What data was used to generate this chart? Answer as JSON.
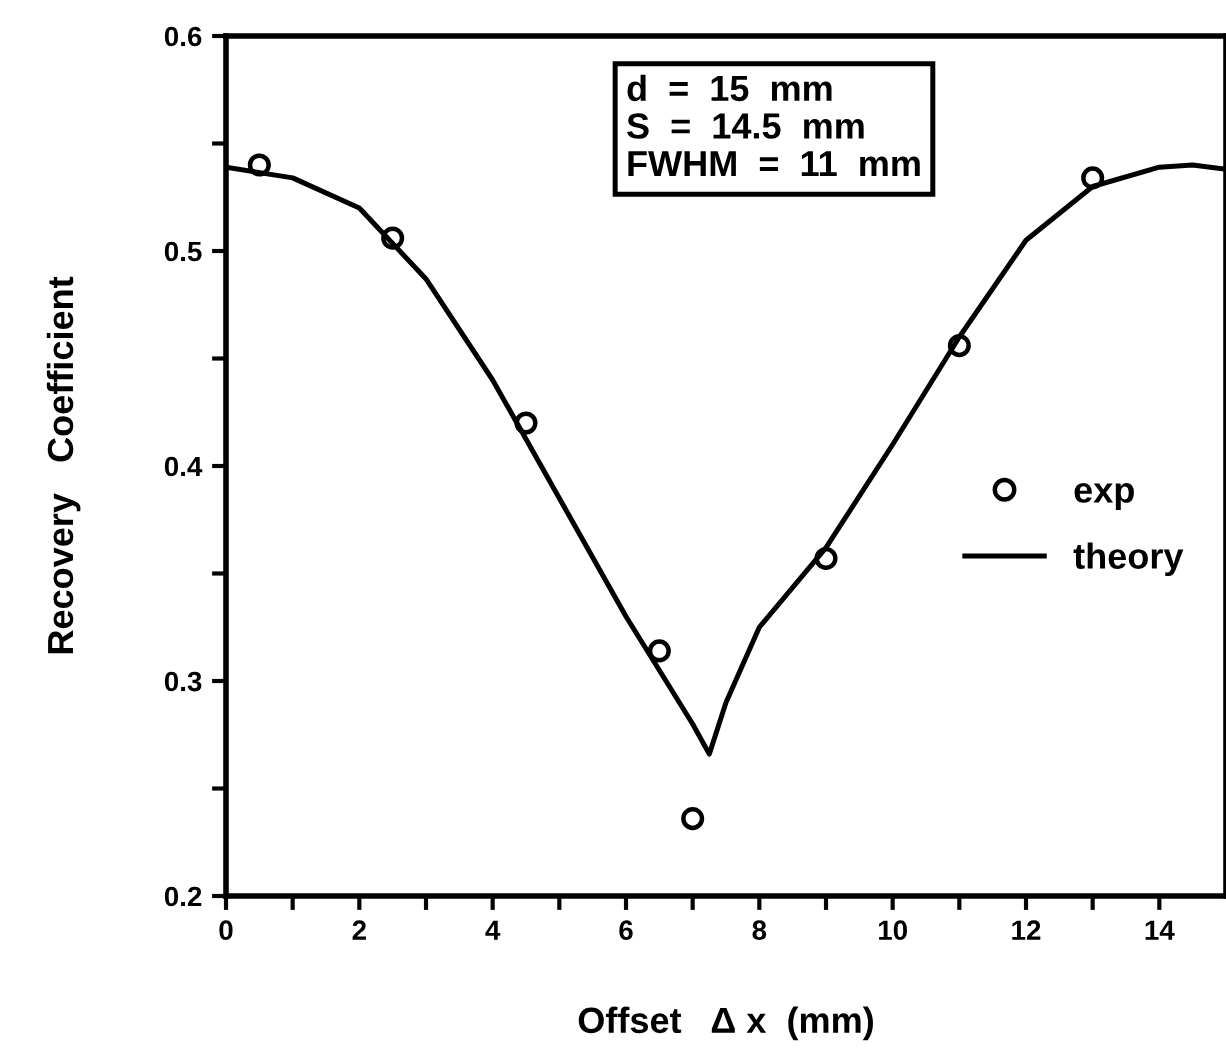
{
  "chart_data": {
    "type": "line",
    "xlabel": "Offset   Δ x  (mm)",
    "ylabel": "Recovery   Coefficient",
    "series": [
      {
        "name": "exp",
        "type": "scatter",
        "color": "#000000",
        "marker": "circle",
        "x": [
          0.5,
          2.5,
          4.5,
          6.5,
          7.0,
          9.0,
          11.0,
          13.0
        ],
        "values": [
          0.54,
          0.506,
          0.42,
          0.314,
          0.236,
          0.357,
          0.456,
          0.534
        ]
      },
      {
        "name": "theory",
        "color": "#000000",
        "line_style": "solid",
        "x": [
          0,
          1,
          2,
          3,
          4,
          5,
          6,
          6.5,
          7,
          7.25,
          7.5,
          8,
          9,
          10,
          11,
          12,
          13,
          14,
          14.5,
          15
        ],
        "values": [
          0.539,
          0.534,
          0.52,
          0.487,
          0.44,
          0.385,
          0.33,
          0.305,
          0.28,
          0.266,
          0.29,
          0.325,
          0.362,
          0.41,
          0.46,
          0.505,
          0.53,
          0.539,
          0.54,
          0.538
        ]
      }
    ],
    "xlim": [
      0,
      15
    ],
    "ylim": [
      0.2,
      0.6
    ],
    "xticks": [
      0,
      {
        "value": 1,
        "label": null
      },
      2,
      {
        "value": 3,
        "label": null
      },
      4,
      {
        "value": 5,
        "label": null
      },
      6,
      {
        "value": 7,
        "label": null
      },
      8,
      {
        "value": 9,
        "label": null
      },
      10,
      {
        "value": 11,
        "label": null
      },
      12,
      {
        "value": 13,
        "label": null
      },
      14
    ],
    "yticks": [
      0.2,
      {
        "value": 0.25,
        "label": null
      },
      0.3,
      {
        "value": 0.35,
        "label": null
      },
      0.4,
      {
        "value": 0.45,
        "label": null
      },
      0.5,
      {
        "value": 0.55,
        "label": null
      },
      0.6
    ],
    "annotations": [
      "d  =  15  mm\nS  =  14.5  mm\nFWHM  =  11  mm"
    ],
    "grid": false,
    "legend": "right"
  }
}
